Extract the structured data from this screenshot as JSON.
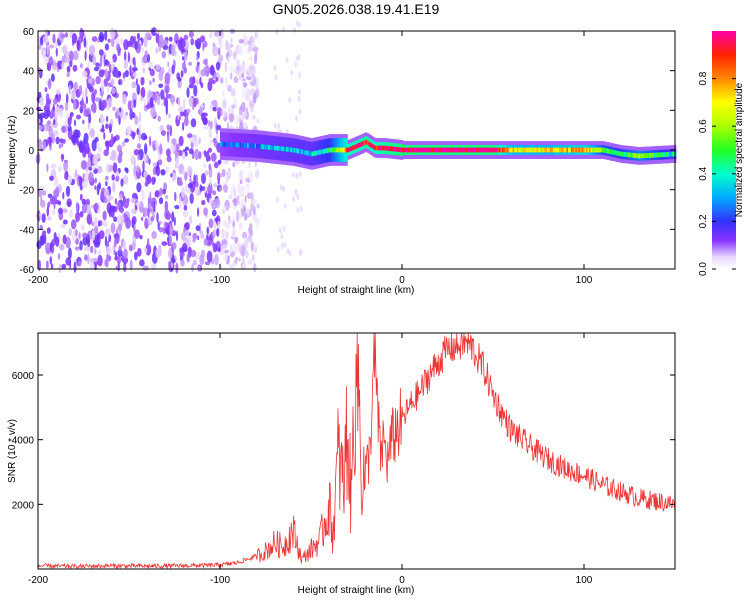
{
  "figure_title": "GN05.2026.038.19.41.E19",
  "chart_data": [
    {
      "type": "heatmap",
      "xlabel": "Height of straight line (km)",
      "ylabel": "Frequency (Hz)",
      "xlim": [
        -200,
        150
      ],
      "ylim": [
        -60,
        60
      ],
      "xticks": [
        -200,
        -100,
        0,
        100
      ],
      "yticks": [
        -60,
        -40,
        -20,
        0,
        20,
        40,
        60
      ],
      "colorbar": {
        "label": "Normalized spectral amplitude",
        "range": [
          0.0,
          1.0
        ],
        "ticks": [
          0.0,
          0.2,
          0.4,
          0.6,
          0.8
        ],
        "colormap": "rainbow (violet to red to magenta)"
      },
      "noise_region_x": [
        -200,
        -85
      ],
      "signal_band": {
        "x": [
          -100,
          -80,
          -60,
          -50,
          -40,
          -30,
          -20,
          -15,
          -10,
          0,
          50,
          60,
          80,
          100,
          110,
          120,
          130,
          150
        ],
        "center_hz": [
          3,
          2,
          0,
          -2,
          0,
          0,
          4,
          1,
          1,
          0,
          0,
          0,
          0,
          0,
          0,
          -2,
          -3,
          -2
        ],
        "amplitude": [
          0.25,
          0.3,
          0.35,
          0.35,
          0.45,
          0.9,
          0.95,
          0.9,
          0.95,
          1.0,
          1.0,
          0.7,
          0.7,
          0.8,
          0.5,
          0.45,
          0.6,
          0.35
        ]
      }
    },
    {
      "type": "line",
      "xlabel": "Height of straight line (km)",
      "ylabel": "SNR (10 * v/v)",
      "xlim": [
        -200,
        150
      ],
      "ylim": [
        0,
        7300
      ],
      "xticks": [
        -200,
        -100,
        0,
        100
      ],
      "yticks": [
        2000,
        4000,
        6000
      ],
      "color": "#ee3333",
      "x": [
        -200,
        -180,
        -160,
        -140,
        -120,
        -100,
        -90,
        -80,
        -75,
        -70,
        -65,
        -60,
        -55,
        -50,
        -45,
        -40,
        -38,
        -35,
        -32,
        -30,
        -28,
        -25,
        -22,
        -20,
        -18,
        -15,
        -12,
        -10,
        -8,
        -6,
        -4,
        -2,
        0,
        5,
        10,
        15,
        20,
        25,
        30,
        35,
        38,
        40,
        45,
        50,
        55,
        60,
        70,
        80,
        90,
        100,
        110,
        120,
        130,
        140,
        150
      ],
      "y": [
        100,
        80,
        100,
        90,
        100,
        120,
        200,
        400,
        550,
        800,
        700,
        1200,
        300,
        600,
        900,
        2000,
        1000,
        3500,
        2500,
        4500,
        2000,
        7300,
        2800,
        3000,
        3500,
        6500,
        3500,
        4000,
        3300,
        3900,
        4200,
        4400,
        4600,
        5100,
        5500,
        6000,
        6400,
        6800,
        6900,
        7000,
        6900,
        6700,
        6200,
        5400,
        4800,
        4300,
        3800,
        3400,
        3100,
        2900,
        2600,
        2400,
        2200,
        2100,
        2000
      ]
    }
  ]
}
